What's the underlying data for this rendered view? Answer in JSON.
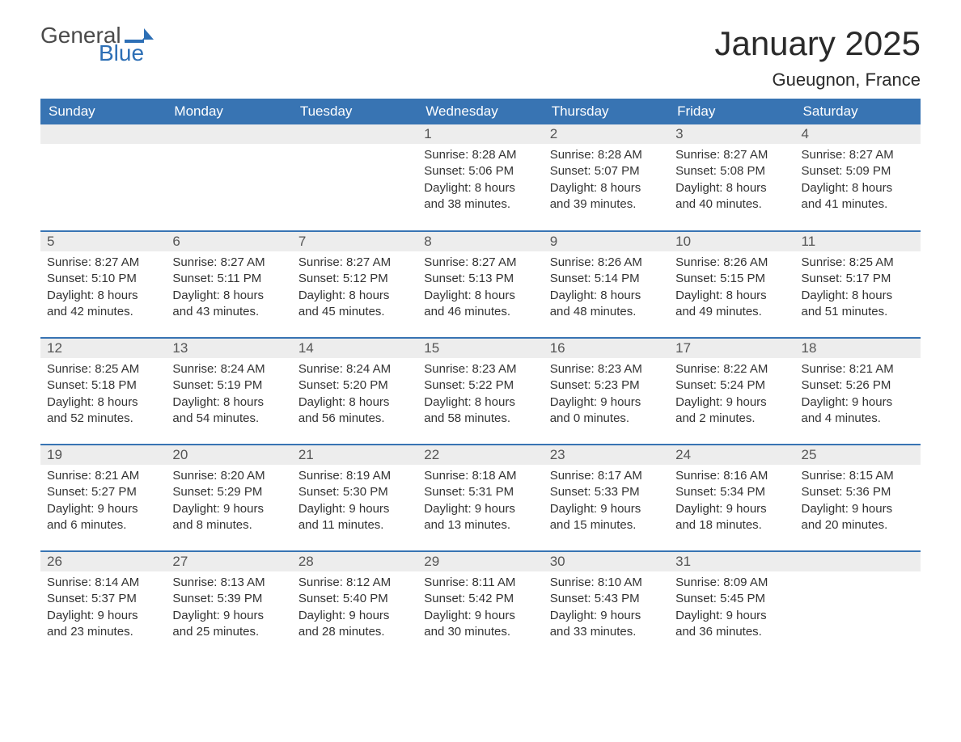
{
  "logo": {
    "text1": "General",
    "text2": "Blue",
    "flag_color": "#2d6fb5",
    "text1_color": "#4a4a4a"
  },
  "title": "January 2025",
  "location": "Gueugnon, France",
  "colors": {
    "header_bg": "#3874b3",
    "header_text": "#ffffff",
    "daynum_bg": "#ededed",
    "daynum_text": "#555555",
    "body_text": "#333333",
    "rule": "#3874b3",
    "page_bg": "#ffffff"
  },
  "fonts": {
    "title_size_pt": 32,
    "location_size_pt": 17,
    "header_size_pt": 13,
    "daynum_size_pt": 13,
    "body_size_pt": 11
  },
  "weekdays": [
    "Sunday",
    "Monday",
    "Tuesday",
    "Wednesday",
    "Thursday",
    "Friday",
    "Saturday"
  ],
  "leading_blanks": 3,
  "days": [
    {
      "n": 1,
      "sunrise": "8:28 AM",
      "sunset": "5:06 PM",
      "daylight": "8 hours and 38 minutes."
    },
    {
      "n": 2,
      "sunrise": "8:28 AM",
      "sunset": "5:07 PM",
      "daylight": "8 hours and 39 minutes."
    },
    {
      "n": 3,
      "sunrise": "8:27 AM",
      "sunset": "5:08 PM",
      "daylight": "8 hours and 40 minutes."
    },
    {
      "n": 4,
      "sunrise": "8:27 AM",
      "sunset": "5:09 PM",
      "daylight": "8 hours and 41 minutes."
    },
    {
      "n": 5,
      "sunrise": "8:27 AM",
      "sunset": "5:10 PM",
      "daylight": "8 hours and 42 minutes."
    },
    {
      "n": 6,
      "sunrise": "8:27 AM",
      "sunset": "5:11 PM",
      "daylight": "8 hours and 43 minutes."
    },
    {
      "n": 7,
      "sunrise": "8:27 AM",
      "sunset": "5:12 PM",
      "daylight": "8 hours and 45 minutes."
    },
    {
      "n": 8,
      "sunrise": "8:27 AM",
      "sunset": "5:13 PM",
      "daylight": "8 hours and 46 minutes."
    },
    {
      "n": 9,
      "sunrise": "8:26 AM",
      "sunset": "5:14 PM",
      "daylight": "8 hours and 48 minutes."
    },
    {
      "n": 10,
      "sunrise": "8:26 AM",
      "sunset": "5:15 PM",
      "daylight": "8 hours and 49 minutes."
    },
    {
      "n": 11,
      "sunrise": "8:25 AM",
      "sunset": "5:17 PM",
      "daylight": "8 hours and 51 minutes."
    },
    {
      "n": 12,
      "sunrise": "8:25 AM",
      "sunset": "5:18 PM",
      "daylight": "8 hours and 52 minutes."
    },
    {
      "n": 13,
      "sunrise": "8:24 AM",
      "sunset": "5:19 PM",
      "daylight": "8 hours and 54 minutes."
    },
    {
      "n": 14,
      "sunrise": "8:24 AM",
      "sunset": "5:20 PM",
      "daylight": "8 hours and 56 minutes."
    },
    {
      "n": 15,
      "sunrise": "8:23 AM",
      "sunset": "5:22 PM",
      "daylight": "8 hours and 58 minutes."
    },
    {
      "n": 16,
      "sunrise": "8:23 AM",
      "sunset": "5:23 PM",
      "daylight": "9 hours and 0 minutes."
    },
    {
      "n": 17,
      "sunrise": "8:22 AM",
      "sunset": "5:24 PM",
      "daylight": "9 hours and 2 minutes."
    },
    {
      "n": 18,
      "sunrise": "8:21 AM",
      "sunset": "5:26 PM",
      "daylight": "9 hours and 4 minutes."
    },
    {
      "n": 19,
      "sunrise": "8:21 AM",
      "sunset": "5:27 PM",
      "daylight": "9 hours and 6 minutes."
    },
    {
      "n": 20,
      "sunrise": "8:20 AM",
      "sunset": "5:29 PM",
      "daylight": "9 hours and 8 minutes."
    },
    {
      "n": 21,
      "sunrise": "8:19 AM",
      "sunset": "5:30 PM",
      "daylight": "9 hours and 11 minutes."
    },
    {
      "n": 22,
      "sunrise": "8:18 AM",
      "sunset": "5:31 PM",
      "daylight": "9 hours and 13 minutes."
    },
    {
      "n": 23,
      "sunrise": "8:17 AM",
      "sunset": "5:33 PM",
      "daylight": "9 hours and 15 minutes."
    },
    {
      "n": 24,
      "sunrise": "8:16 AM",
      "sunset": "5:34 PM",
      "daylight": "9 hours and 18 minutes."
    },
    {
      "n": 25,
      "sunrise": "8:15 AM",
      "sunset": "5:36 PM",
      "daylight": "9 hours and 20 minutes."
    },
    {
      "n": 26,
      "sunrise": "8:14 AM",
      "sunset": "5:37 PM",
      "daylight": "9 hours and 23 minutes."
    },
    {
      "n": 27,
      "sunrise": "8:13 AM",
      "sunset": "5:39 PM",
      "daylight": "9 hours and 25 minutes."
    },
    {
      "n": 28,
      "sunrise": "8:12 AM",
      "sunset": "5:40 PM",
      "daylight": "9 hours and 28 minutes."
    },
    {
      "n": 29,
      "sunrise": "8:11 AM",
      "sunset": "5:42 PM",
      "daylight": "9 hours and 30 minutes."
    },
    {
      "n": 30,
      "sunrise": "8:10 AM",
      "sunset": "5:43 PM",
      "daylight": "9 hours and 33 minutes."
    },
    {
      "n": 31,
      "sunrise": "8:09 AM",
      "sunset": "5:45 PM",
      "daylight": "9 hours and 36 minutes."
    }
  ],
  "labels": {
    "sunrise": "Sunrise:",
    "sunset": "Sunset:",
    "daylight": "Daylight:"
  }
}
